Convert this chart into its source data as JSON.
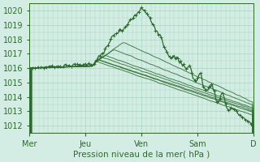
{
  "xlabel": "Pression niveau de la mer( hPa )",
  "bg_color": "#d4ede4",
  "grid_color": "#a8d4c0",
  "line_color": "#2d6b2d",
  "ylim": [
    1011.5,
    1020.5
  ],
  "yticks": [
    1012,
    1013,
    1014,
    1015,
    1016,
    1017,
    1018,
    1019,
    1020
  ],
  "day_labels": [
    "Mer",
    "Jeu",
    "Ven",
    "Sam",
    "D"
  ],
  "day_positions": [
    0,
    60,
    120,
    180,
    240
  ],
  "xlim": [
    0,
    240
  ],
  "num_points": 241,
  "convergence_x": 68,
  "convergence_y": 1016.3
}
